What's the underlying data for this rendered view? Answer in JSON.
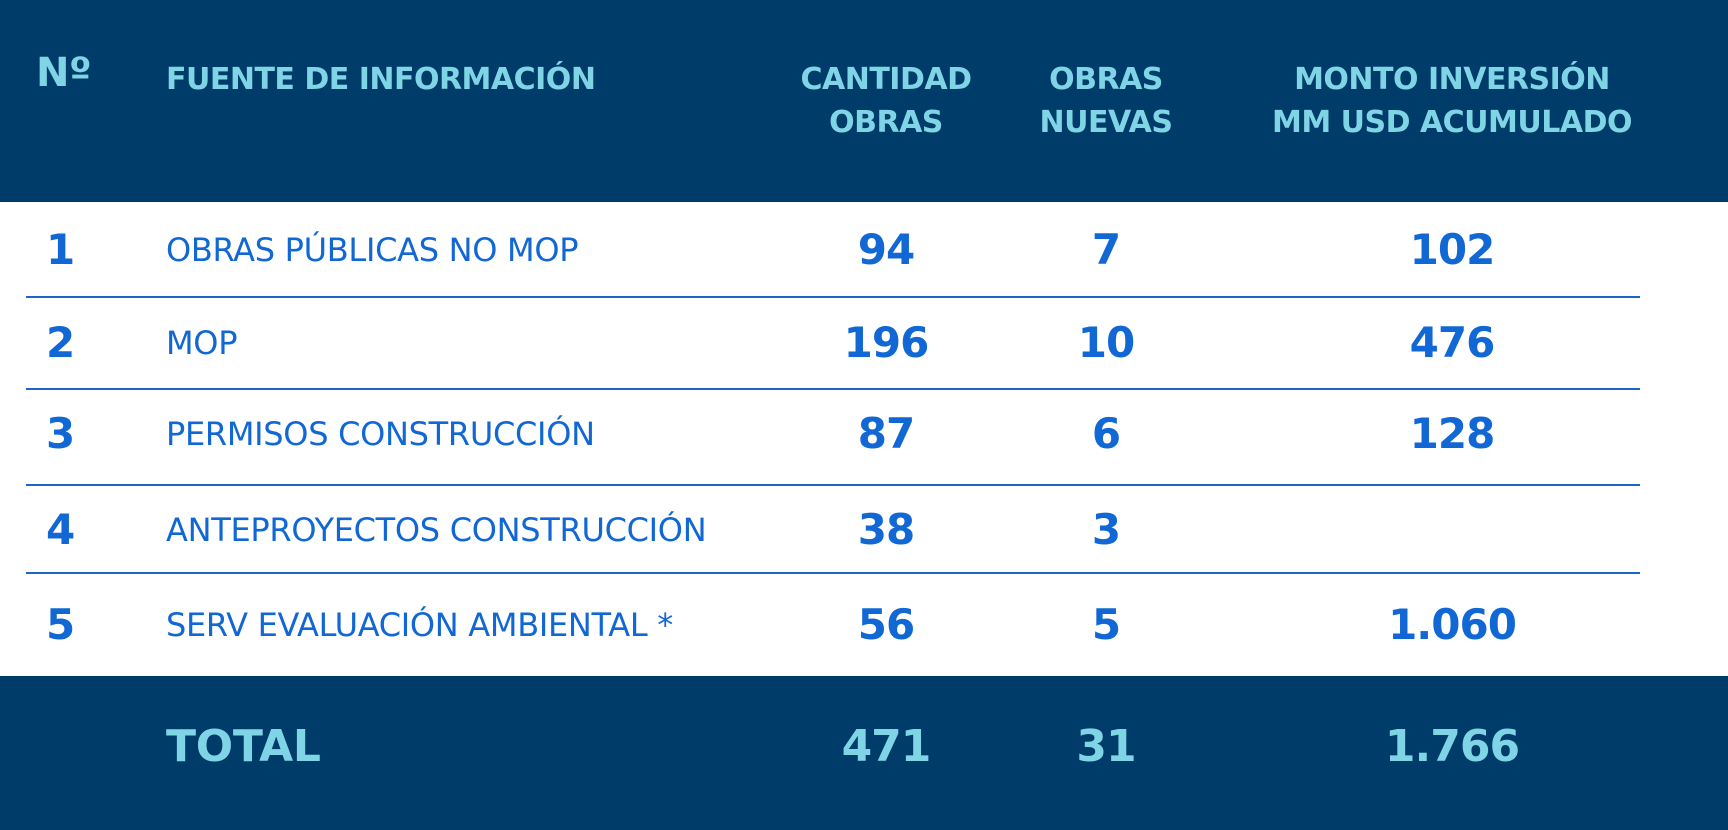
{
  "header": {
    "no": "Nº",
    "source": "FUENTE DE INFORMACIÓN",
    "cantidad_l1": "CANTIDAD",
    "cantidad_l2": "OBRAS",
    "nuevas_l1": "OBRAS",
    "nuevas_l2": "NUEVAS",
    "monto_l1": "MONTO INVERSIÓN",
    "monto_l2": "MM USD ACUMULADO"
  },
  "rows": [
    {
      "no": "1",
      "source": "OBRAS PÚBLICAS NO MOP",
      "cantidad": "94",
      "nuevas": "7",
      "monto": "102"
    },
    {
      "no": "2",
      "source": "MOP",
      "cantidad": "196",
      "nuevas": "10",
      "monto": "476"
    },
    {
      "no": "3",
      "source": "PERMISOS CONSTRUCCIÓN",
      "cantidad": "87",
      "nuevas": "6",
      "monto": "128"
    },
    {
      "no": "4",
      "source": "ANTEPROYECTOS CONSTRUCCIÓN",
      "cantidad": "38",
      "nuevas": "3",
      "monto": ""
    },
    {
      "no": "5",
      "source": "SERV EVALUACIÓN AMBIENTAL *",
      "cantidad": "56",
      "nuevas": "5",
      "monto": "1.060"
    }
  ],
  "total": {
    "label": "TOTAL",
    "cantidad": "471",
    "nuevas": "31",
    "monto": "1.766"
  },
  "colors": {
    "header_bg": "#003c69",
    "header_text": "#7fd5e6",
    "body_text": "#1167d4",
    "divider": "#1b66c6"
  }
}
